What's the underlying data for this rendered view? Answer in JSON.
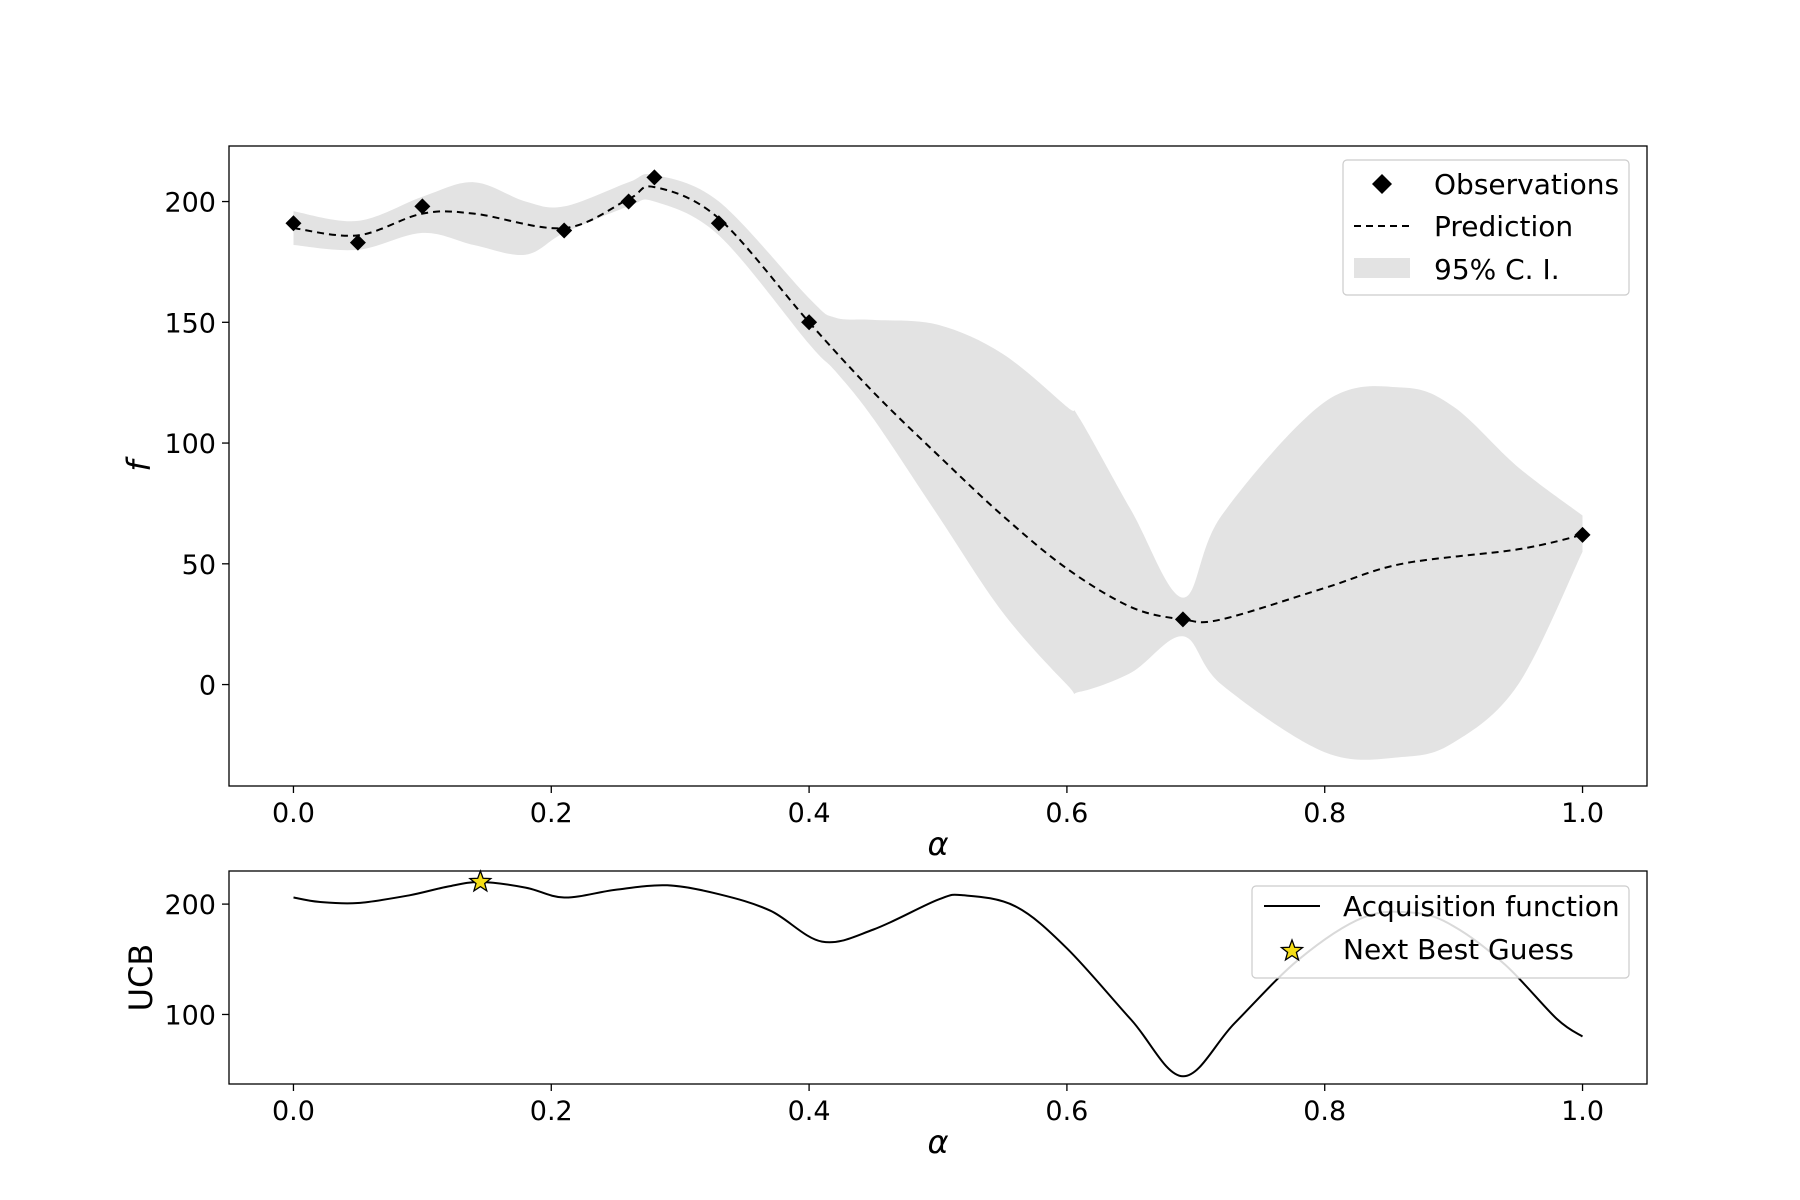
{
  "chart_data": [
    {
      "type": "line",
      "xlabel": "α",
      "ylabel": "f",
      "xlim": [
        -0.05,
        1.05
      ],
      "ylim": [
        -42,
        223
      ],
      "grid": false,
      "legend_position": "top-right",
      "x_ticks": [
        "0.0",
        "0.2",
        "0.4",
        "0.6",
        "0.8",
        "1.0"
      ],
      "y_ticks": [
        "0",
        "50",
        "100",
        "150",
        "200"
      ],
      "legend": [
        "Observations",
        "Prediction",
        "95% C. I."
      ],
      "colors": {
        "ci_fill": "#e3e3e3",
        "line": "#000000",
        "marker": "#000000"
      },
      "series": [
        {
          "name": "Observations",
          "type": "scatter",
          "marker": "diamond",
          "x": [
            0.0,
            0.05,
            0.1,
            0.21,
            0.26,
            0.28,
            0.33,
            0.4,
            0.69,
            1.0
          ],
          "y": [
            191,
            183,
            198,
            188,
            200,
            210,
            191,
            150,
            27,
            62
          ]
        },
        {
          "name": "Prediction",
          "type": "line",
          "style": "dashed",
          "x": [
            0.0,
            0.05,
            0.1,
            0.14,
            0.21,
            0.26,
            0.28,
            0.33,
            0.4,
            0.45,
            0.5,
            0.55,
            0.6,
            0.65,
            0.69,
            0.72,
            0.8,
            0.86,
            0.95,
            1.0
          ],
          "y": [
            189,
            186,
            195,
            195,
            189,
            201,
            206,
            193,
            150,
            121,
            95,
            70,
            48,
            32,
            27,
            27,
            40,
            50,
            56,
            62
          ]
        },
        {
          "name": "95% C. I.",
          "type": "band",
          "x": [
            0.0,
            0.05,
            0.1,
            0.14,
            0.18,
            0.21,
            0.26,
            0.28,
            0.33,
            0.4,
            0.42,
            0.45,
            0.5,
            0.55,
            0.6,
            0.61,
            0.65,
            0.69,
            0.72,
            0.8,
            0.86,
            0.9,
            0.95,
            1.0
          ],
          "lower": [
            182,
            180,
            187,
            182,
            178,
            187,
            198,
            200,
            186,
            141,
            130,
            110,
            70,
            30,
            0,
            -3,
            5,
            20,
            0,
            -28,
            -30,
            -24,
            0,
            55
          ],
          "upper": [
            196,
            192,
            202,
            208,
            200,
            198,
            208,
            211,
            200,
            160,
            152,
            151,
            149,
            137,
            115,
            110,
            72,
            36,
            70,
            117,
            123,
            115,
            90,
            70
          ]
        }
      ]
    },
    {
      "type": "line",
      "xlabel": "α",
      "ylabel": "UCB",
      "xlim": [
        -0.05,
        1.05
      ],
      "ylim": [
        37,
        230
      ],
      "grid": false,
      "legend_position": "top-right",
      "x_ticks": [
        "0.0",
        "0.2",
        "0.4",
        "0.6",
        "0.8",
        "1.0"
      ],
      "y_ticks": [
        "100",
        "200"
      ],
      "legend": [
        "Acquisition function",
        "Next Best Guess"
      ],
      "colors": {
        "line": "#000000",
        "star": "#f5dd16"
      },
      "series": [
        {
          "name": "Acquisition function",
          "type": "line",
          "x": [
            0.0,
            0.02,
            0.05,
            0.09,
            0.12,
            0.145,
            0.18,
            0.21,
            0.25,
            0.29,
            0.33,
            0.37,
            0.41,
            0.45,
            0.5,
            0.52,
            0.56,
            0.6,
            0.65,
            0.69,
            0.73,
            0.78,
            0.83,
            0.87,
            0.9,
            0.94,
            0.98,
            1.0
          ],
          "y": [
            206,
            202,
            201,
            208,
            216,
            220,
            215,
            206,
            213,
            217,
            209,
            194,
            166,
            177,
            204,
            208,
            198,
            160,
            95,
            44,
            92,
            150,
            188,
            192,
            180,
            145,
            96,
            80
          ]
        },
        {
          "name": "Next Best Guess",
          "type": "scatter",
          "marker": "star",
          "x": [
            0.145
          ],
          "y": [
            220
          ]
        }
      ]
    }
  ]
}
